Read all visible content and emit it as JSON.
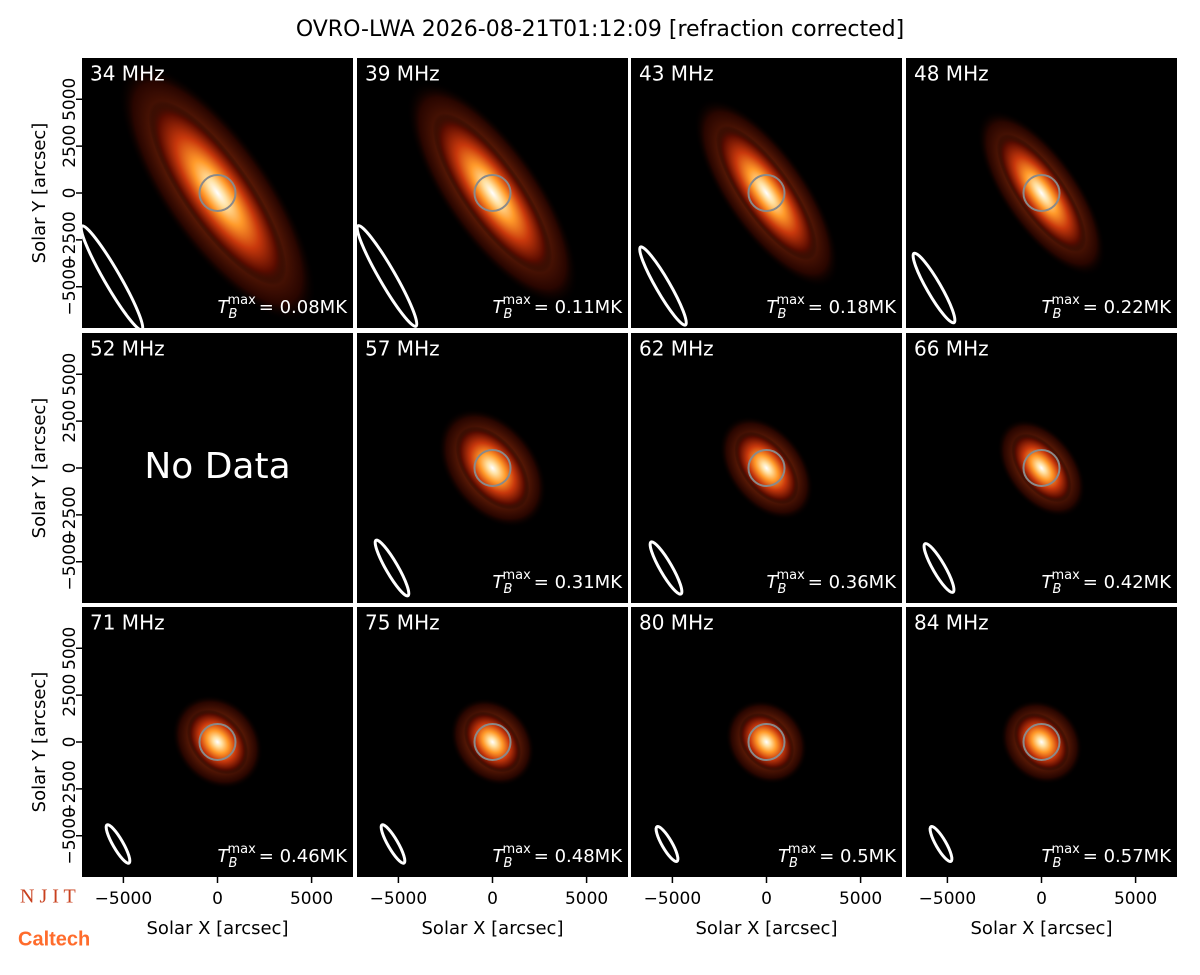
{
  "chart_data": {
    "type": "image_grid",
    "title": "OVRO-LWA 2026-08-21T01:12:09 [refraction corrected]",
    "x_label": "Solar X [arcsec]",
    "y_label": "Solar Y [arcsec]",
    "xlim": [
      -7200,
      7200
    ],
    "ylim": [
      -7200,
      7200
    ],
    "xticks": [
      {
        "value": -5000,
        "label": "−5000"
      },
      0,
      5000
    ],
    "yticks": [
      {
        "value": -5000,
        "label": "−5000"
      },
      {
        "value": -2500,
        "label": "−2500"
      },
      0,
      2500,
      5000
    ],
    "tb_symbol": "T",
    "tb_sub": "B",
    "tb_sup": "max",
    "panels": [
      {
        "label": "34 MHz",
        "tb_label": "= 0.08MK"
      },
      {
        "label": "39 MHz",
        "tb_label": "= 0.11MK"
      },
      {
        "label": "43 MHz",
        "tb_label": "= 0.18MK"
      },
      {
        "label": "48 MHz",
        "tb_label": "= 0.22MK"
      },
      {
        "label": "52 MHz",
        "note": "No Data"
      },
      {
        "label": "57 MHz",
        "tb_label": "= 0.31MK"
      },
      {
        "label": "62 MHz",
        "tb_label": "= 0.36MK"
      },
      {
        "label": "66 MHz",
        "tb_label": "= 0.42MK"
      },
      {
        "label": "71 MHz",
        "tb_label": "= 0.46MK"
      },
      {
        "label": "75 MHz",
        "tb_label": "= 0.48MK"
      },
      {
        "label": "80 MHz",
        "tb_label": "= 0.5MK"
      },
      {
        "label": "84 MHz",
        "tb_label": "= 0.57MK"
      }
    ]
  },
  "logos": [
    "N J I T",
    "Caltech"
  ]
}
